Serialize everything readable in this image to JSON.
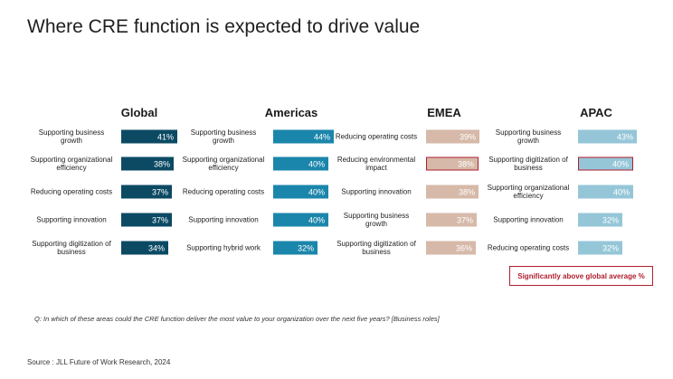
{
  "title": "Where CRE function is expected to drive value",
  "chart_data": {
    "type": "bar",
    "unit": "%",
    "panels": [
      {
        "name": "Global",
        "color": "#0c4a64",
        "categories": [
          "Supporting business growth",
          "Supporting organizational efficiency",
          "Reducing operating costs",
          "Supporting innovation",
          "Supporting digitization of business"
        ],
        "values": [
          41,
          38,
          37,
          37,
          34
        ],
        "labels": [
          "41%",
          "38%",
          "37%",
          "37%",
          "34%"
        ],
        "highlighted": [
          false,
          false,
          false,
          false,
          false
        ]
      },
      {
        "name": "Americas",
        "color": "#1b86ab",
        "categories": [
          "Supporting business growth",
          "Supporting organizational efficiency",
          "Reducing operating costs",
          "Supporting innovation",
          "Supporting hybrid work"
        ],
        "values": [
          44,
          40,
          40,
          40,
          32
        ],
        "labels": [
          "44%",
          "40%",
          "40%",
          "40%",
          "32%"
        ],
        "highlighted": [
          false,
          false,
          false,
          false,
          false
        ]
      },
      {
        "name": "EMEA",
        "color": "#d6b9a8",
        "categories": [
          "Reducing operating costs",
          "Reducing environmental impact",
          "Supporting innovation",
          "Supporting business growth",
          "Supporting digitization of business"
        ],
        "values": [
          39,
          38,
          38,
          37,
          36
        ],
        "labels": [
          "39%",
          "38%",
          "38%",
          "37%",
          "36%"
        ],
        "highlighted": [
          false,
          true,
          false,
          false,
          false
        ]
      },
      {
        "name": "APAC",
        "color": "#95c6d8",
        "categories": [
          "Supporting business growth",
          "Supporting digitization of business",
          "Supporting organizational efficiency",
          "Supporting innovation",
          "Reducing operating costs"
        ],
        "values": [
          43,
          40,
          40,
          32,
          32
        ],
        "labels": [
          "43%",
          "40%",
          "40%",
          "32%",
          "32%"
        ],
        "highlighted": [
          false,
          true,
          false,
          false,
          false
        ]
      }
    ],
    "highlight_color": "#b01e2e"
  },
  "legend": {
    "text": "Significantly above global average %"
  },
  "question": "Q: In which of these areas could the CRE function deliver the most value to your organization over the next five years? [Business roles]",
  "source": "Source : JLL Future of Work Research, 2024"
}
